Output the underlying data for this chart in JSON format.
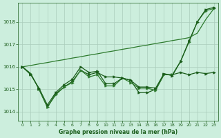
{
  "xlabel": "Graphe pression niveau de la mer (hPa)",
  "ylim": [
    1013.6,
    1018.85
  ],
  "xlim": [
    -0.5,
    23.5
  ],
  "xticks": [
    0,
    1,
    2,
    3,
    4,
    5,
    6,
    7,
    8,
    9,
    10,
    11,
    12,
    13,
    14,
    15,
    16,
    17,
    18,
    19,
    20,
    21,
    22,
    23
  ],
  "yticks": [
    1014,
    1015,
    1016,
    1017,
    1018
  ],
  "bg_color": "#cceedd",
  "grid_color": "#aaccbb",
  "line_color_dark": "#1a5c1a",
  "series": {
    "straight": [
      1016.0,
      1016.06,
      1016.13,
      1016.19,
      1016.26,
      1016.32,
      1016.39,
      1016.45,
      1016.52,
      1016.58,
      1016.65,
      1016.71,
      1016.78,
      1016.84,
      1016.91,
      1016.97,
      1017.04,
      1017.1,
      1017.17,
      1017.23,
      1017.3,
      1017.5,
      1018.1,
      1018.6
    ],
    "wavy1": [
      1016.0,
      1015.7,
      1015.0,
      1014.2,
      1014.8,
      1015.1,
      1015.35,
      1015.85,
      1015.65,
      1015.75,
      1015.55,
      1015.55,
      1015.5,
      1015.4,
      1014.85,
      1014.85,
      1015.0,
      1015.65,
      1015.65,
      1015.75,
      1015.65,
      1015.75,
      1015.7,
      1015.75
    ],
    "wavy2": [
      1016.0,
      1015.7,
      1015.0,
      1014.2,
      1014.75,
      1015.1,
      1015.3,
      1015.85,
      1015.55,
      1015.65,
      1015.15,
      1015.15,
      1015.5,
      1015.3,
      1015.05,
      1015.05,
      1014.95,
      1015.65,
      1015.65,
      1016.25,
      1017.1,
      1018.0,
      1018.5,
      1018.6
    ],
    "wavy3": [
      1016.0,
      1015.65,
      1015.05,
      1014.3,
      1014.85,
      1015.2,
      1015.45,
      1016.0,
      1015.75,
      1015.8,
      1015.25,
      1015.25,
      1015.5,
      1015.4,
      1015.1,
      1015.1,
      1015.05,
      1015.7,
      1015.6,
      1016.25,
      1017.15,
      1018.0,
      1018.55,
      1018.65
    ]
  },
  "marker_styles": [
    {
      "marker": "None",
      "markersize": 0,
      "linewidth": 0.9,
      "color": "#2d7a2d"
    },
    {
      "marker": ">",
      "markersize": 2.5,
      "linewidth": 0.9,
      "color": "#1a5c1a"
    },
    {
      "marker": ">",
      "markersize": 2.5,
      "linewidth": 0.9,
      "color": "#2d7a2d"
    },
    {
      "marker": ">",
      "markersize": 2.5,
      "linewidth": 0.9,
      "color": "#1a5c1a"
    }
  ]
}
